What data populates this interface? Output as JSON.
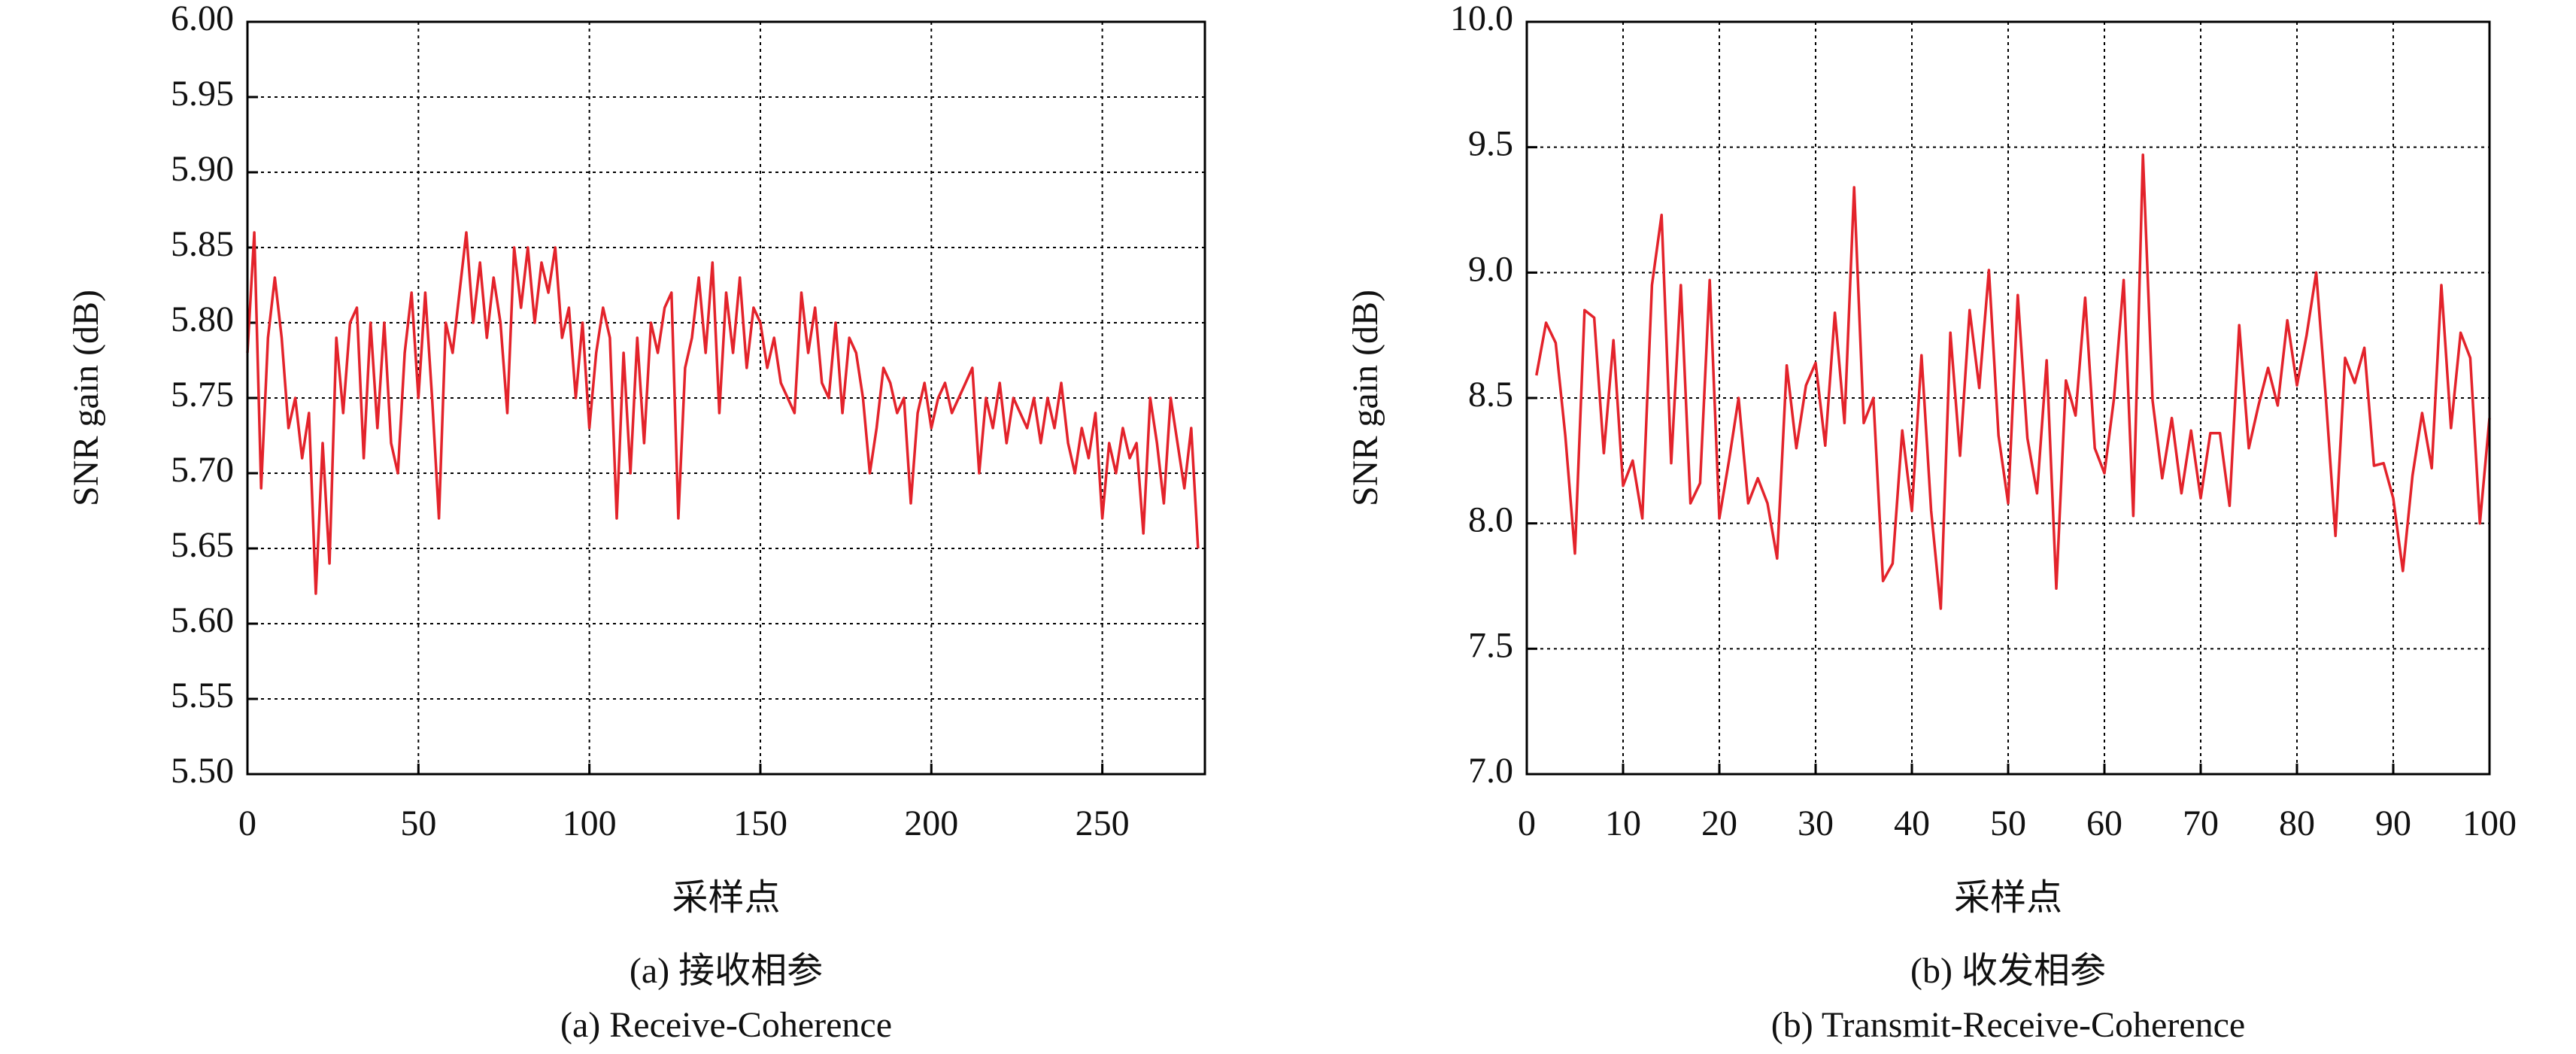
{
  "chart_data": [
    {
      "type": "line",
      "ylabel": "SNR gain (dB)",
      "xlabel": "采样点",
      "caption_cn": "(a) 接收相参",
      "caption_en": "(a) Receive-Coherence",
      "color": "#e3232b",
      "grid": true,
      "xlim": [
        0,
        280
      ],
      "xticks": [
        0,
        50,
        100,
        150,
        200,
        250
      ],
      "ylim": [
        5.5,
        6.0
      ],
      "yticks": [
        {
          "value": 5.5,
          "label": "5.50"
        },
        {
          "value": 5.55,
          "label": "5.55"
        },
        {
          "value": 5.6,
          "label": "5.60"
        },
        {
          "value": 5.65,
          "label": "5.65"
        },
        {
          "value": 5.7,
          "label": "5.70"
        },
        {
          "value": 5.75,
          "label": "5.75"
        },
        {
          "value": 5.8,
          "label": "5.80"
        },
        {
          "value": 5.85,
          "label": "5.85"
        },
        {
          "value": 5.9,
          "label": "5.90"
        },
        {
          "value": 5.95,
          "label": "5.95"
        },
        {
          "value": 6.0,
          "label": "6.00"
        }
      ],
      "x": [
        0,
        2,
        4,
        6,
        8,
        10,
        12,
        14,
        16,
        18,
        20,
        22,
        24,
        26,
        28,
        30,
        32,
        34,
        36,
        38,
        40,
        42,
        44,
        46,
        48,
        50,
        52,
        54,
        56,
        58,
        60,
        62,
        64,
        66,
        68,
        70,
        72,
        74,
        76,
        78,
        80,
        82,
        84,
        86,
        88,
        90,
        92,
        94,
        96,
        98,
        100,
        102,
        104,
        106,
        108,
        110,
        112,
        114,
        116,
        118,
        120,
        122,
        124,
        126,
        128,
        130,
        132,
        134,
        136,
        138,
        140,
        142,
        144,
        146,
        148,
        150,
        152,
        154,
        156,
        158,
        160,
        162,
        164,
        166,
        168,
        170,
        172,
        174,
        176,
        178,
        180,
        182,
        184,
        186,
        188,
        190,
        192,
        194,
        196,
        198,
        200,
        202,
        204,
        206,
        208,
        210,
        212,
        214,
        216,
        218,
        220,
        222,
        224,
        226,
        228,
        230,
        232,
        234,
        236,
        238,
        240,
        242,
        244,
        246,
        248,
        250,
        252,
        254,
        256,
        258,
        260,
        262,
        264,
        266,
        268,
        270,
        272,
        274,
        276,
        278
      ],
      "values": [
        5.78,
        5.86,
        5.69,
        5.79,
        5.83,
        5.79,
        5.73,
        5.75,
        5.71,
        5.74,
        5.62,
        5.72,
        5.64,
        5.79,
        5.74,
        5.8,
        5.81,
        5.71,
        5.8,
        5.73,
        5.8,
        5.72,
        5.7,
        5.78,
        5.82,
        5.75,
        5.82,
        5.75,
        5.67,
        5.8,
        5.78,
        5.82,
        5.86,
        5.8,
        5.84,
        5.79,
        5.83,
        5.8,
        5.74,
        5.85,
        5.81,
        5.85,
        5.8,
        5.84,
        5.82,
        5.85,
        5.79,
        5.81,
        5.75,
        5.8,
        5.73,
        5.78,
        5.81,
        5.79,
        5.67,
        5.78,
        5.7,
        5.79,
        5.72,
        5.8,
        5.78,
        5.81,
        5.82,
        5.67,
        5.77,
        5.79,
        5.83,
        5.78,
        5.84,
        5.74,
        5.82,
        5.78,
        5.83,
        5.77,
        5.81,
        5.8,
        5.77,
        5.79,
        5.76,
        5.75,
        5.74,
        5.82,
        5.78,
        5.81,
        5.76,
        5.75,
        5.8,
        5.74,
        5.79,
        5.78,
        5.75,
        5.7,
        5.73,
        5.77,
        5.76,
        5.74,
        5.75,
        5.68,
        5.74,
        5.76,
        5.73,
        5.75,
        5.76,
        5.74,
        5.75,
        5.76,
        5.77,
        5.7,
        5.75,
        5.73,
        5.76,
        5.72,
        5.75,
        5.74,
        5.73,
        5.75,
        5.72,
        5.75,
        5.73,
        5.76,
        5.72,
        5.7,
        5.73,
        5.71,
        5.74,
        5.67,
        5.72,
        5.7,
        5.73,
        5.71,
        5.72,
        5.66,
        5.75,
        5.72,
        5.68,
        5.75,
        5.72,
        5.69,
        5.73,
        5.65
      ]
    },
    {
      "type": "line",
      "ylabel": "SNR gain (dB)",
      "xlabel": "采样点",
      "caption_cn": "(b) 收发相参",
      "caption_en": "(b) Transmit-Receive-Coherence",
      "color": "#e3232b",
      "grid": true,
      "xlim": [
        0,
        100
      ],
      "xticks": [
        0,
        10,
        20,
        30,
        40,
        50,
        60,
        70,
        80,
        90,
        100
      ],
      "ylim": [
        7,
        10
      ],
      "yticks": [
        {
          "value": 7,
          "label": "7.0"
        },
        7.5,
        {
          "value": 8,
          "label": "8.0"
        },
        8.5,
        {
          "value": 9,
          "label": "9.0"
        },
        9.5,
        {
          "value": 10,
          "label": "10.0"
        }
      ],
      "x": [
        1,
        2,
        3,
        4,
        5,
        6,
        7,
        8,
        9,
        10,
        11,
        12,
        13,
        14,
        15,
        16,
        17,
        18,
        19,
        20,
        21,
        22,
        23,
        24,
        25,
        26,
        27,
        28,
        29,
        30,
        31,
        32,
        33,
        34,
        35,
        36,
        37,
        38,
        39,
        40,
        41,
        42,
        43,
        44,
        45,
        46,
        47,
        48,
        49,
        50,
        51,
        52,
        53,
        54,
        55,
        56,
        57,
        58,
        59,
        60,
        61,
        62,
        63,
        64,
        65,
        66,
        67,
        68,
        69,
        70,
        71,
        72,
        73,
        74,
        75,
        76,
        77,
        78,
        79,
        80,
        81,
        82,
        83,
        84,
        85,
        86,
        87,
        88,
        89,
        90,
        91,
        92,
        93,
        94,
        95,
        96,
        97,
        98,
        99,
        100
      ],
      "values": [
        8.59,
        8.8,
        8.72,
        8.35,
        7.88,
        8.85,
        8.82,
        8.28,
        8.73,
        8.15,
        8.25,
        8.02,
        8.95,
        9.23,
        8.24,
        8.95,
        8.08,
        8.16,
        8.97,
        8.02,
        8.25,
        8.5,
        8.08,
        8.18,
        8.08,
        7.86,
        8.63,
        8.3,
        8.55,
        8.64,
        8.31,
        8.84,
        8.4,
        9.34,
        8.4,
        8.5,
        7.77,
        7.84,
        8.37,
        8.05,
        8.67,
        8.05,
        7.66,
        8.76,
        8.27,
        8.85,
        8.54,
        9.01,
        8.35,
        8.08,
        8.91,
        8.34,
        8.12,
        8.65,
        7.74,
        8.57,
        8.43,
        8.9,
        8.3,
        8.2,
        8.5,
        8.97,
        8.03,
        9.47,
        8.49,
        8.18,
        8.42,
        8.12,
        8.37,
        8.1,
        8.36,
        8.36,
        8.07,
        8.79,
        8.3,
        8.47,
        8.62,
        8.47,
        8.81,
        8.55,
        8.75,
        9.0,
        8.5,
        7.95,
        8.66,
        8.56,
        8.7,
        8.23,
        8.24,
        8.1,
        7.81,
        8.19,
        8.44,
        8.22,
        8.95,
        8.38,
        8.76,
        8.66,
        8.0,
        8.42
      ]
    }
  ]
}
